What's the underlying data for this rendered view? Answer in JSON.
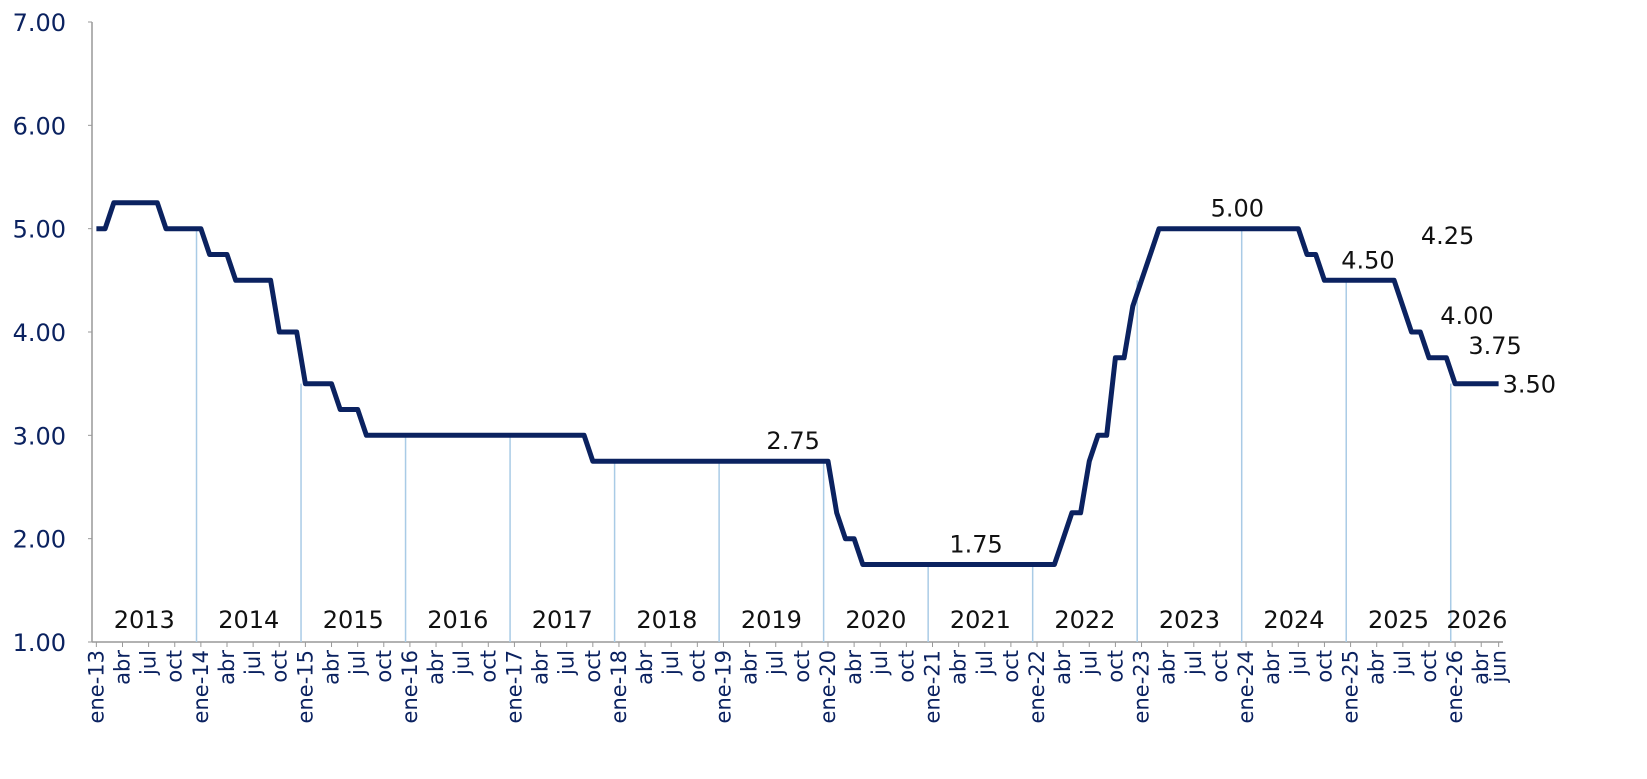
{
  "chart_data": {
    "type": "line",
    "categories": [
      "ene-13",
      null,
      null,
      "abr",
      null,
      null,
      "jul",
      null,
      null,
      "oct",
      null,
      null,
      "ene-14",
      null,
      null,
      "abr",
      null,
      null,
      "jul",
      null,
      null,
      "oct",
      null,
      null,
      "ene-15",
      null,
      null,
      "abr",
      null,
      null,
      "jul",
      null,
      null,
      "oct",
      null,
      null,
      "ene-16",
      null,
      null,
      "abr",
      null,
      null,
      "jul",
      null,
      null,
      "oct",
      null,
      null,
      "ene-17",
      null,
      null,
      "abr",
      null,
      null,
      "jul",
      null,
      null,
      "oct",
      null,
      null,
      "ene-18",
      null,
      null,
      "abr",
      null,
      null,
      "jul",
      null,
      null,
      "oct",
      null,
      null,
      "ene-19",
      null,
      null,
      "abr",
      null,
      null,
      "jul",
      null,
      null,
      "oct",
      null,
      null,
      "ene-20",
      null,
      null,
      "abr",
      null,
      null,
      "jul",
      null,
      null,
      "oct",
      null,
      null,
      "ene-21",
      null,
      null,
      "abr",
      null,
      null,
      "jul",
      null,
      null,
      "oct",
      null,
      null,
      "ene-22",
      null,
      null,
      "abr",
      null,
      null,
      "jul",
      null,
      null,
      "oct",
      null,
      null,
      "ene-23",
      null,
      null,
      "abr",
      null,
      null,
      "jul",
      null,
      null,
      "oct",
      null,
      null,
      "ene-24",
      null,
      null,
      "abr",
      null,
      null,
      "jul",
      null,
      null,
      "oct",
      null,
      null,
      "ene-25",
      null,
      null,
      "abr",
      null,
      null,
      "jul",
      null,
      null,
      "oct",
      null,
      null,
      "ene-26",
      null,
      null,
      "abr",
      null,
      "jun"
    ],
    "year_labels": [
      "2013",
      "2014",
      "2015",
      "2016",
      "2017",
      "2018",
      "2019",
      "2020",
      "2021",
      "2022",
      "2023",
      "2024",
      "2025",
      "2026"
    ],
    "series": [
      {
        "color": "#0b2260",
        "values": [
          5,
          5,
          5.25,
          5.25,
          5.25,
          5.25,
          5.25,
          5.25,
          5,
          5,
          5,
          5,
          5,
          4.75,
          4.75,
          4.75,
          4.5,
          4.5,
          4.5,
          4.5,
          4.5,
          4,
          4,
          4,
          3.5,
          3.5,
          3.5,
          3.5,
          3.25,
          3.25,
          3.25,
          3,
          3,
          3,
          3,
          3,
          3,
          3,
          3,
          3,
          3,
          3,
          3,
          3,
          3,
          3,
          3,
          3,
          3,
          3,
          3,
          3,
          3,
          3,
          3,
          3,
          3,
          2.75,
          2.75,
          2.75,
          2.75,
          2.75,
          2.75,
          2.75,
          2.75,
          2.75,
          2.75,
          2.75,
          2.75,
          2.75,
          2.75,
          2.75,
          2.75,
          2.75,
          2.75,
          2.75,
          2.75,
          2.75,
          2.75,
          2.75,
          2.75,
          2.75,
          2.75,
          2.75,
          2.75,
          2.25,
          2,
          2,
          1.75,
          1.75,
          1.75,
          1.75,
          1.75,
          1.75,
          1.75,
          1.75,
          1.75,
          1.75,
          1.75,
          1.75,
          1.75,
          1.75,
          1.75,
          1.75,
          1.75,
          1.75,
          1.75,
          1.75,
          1.75,
          1.75,
          1.75,
          2,
          2.25,
          2.25,
          2.75,
          3,
          3,
          3.75,
          3.75,
          4.25,
          4.5,
          4.75,
          5,
          5,
          5,
          5,
          5,
          5,
          5,
          5,
          5,
          5,
          5,
          5,
          5,
          5,
          5,
          5,
          5,
          4.75,
          4.75,
          4.5,
          4.5,
          4.5,
          4.5,
          4.5,
          4.5,
          4.5,
          4.5,
          4.5,
          4.25,
          4,
          4,
          3.75,
          3.75,
          3.75,
          3.5,
          3.5,
          3.5,
          3.5,
          3.5,
          3.5
        ],
        "value_labels": [
          null,
          null,
          null,
          null,
          null,
          null,
          null,
          null,
          null,
          null,
          null,
          null,
          null,
          null,
          null,
          null,
          null,
          null,
          null,
          null,
          null,
          null,
          null,
          null,
          null,
          null,
          null,
          null,
          null,
          null,
          null,
          null,
          null,
          null,
          null,
          null,
          null,
          null,
          null,
          null,
          null,
          null,
          null,
          null,
          null,
          null,
          null,
          null,
          null,
          null,
          null,
          null,
          null,
          null,
          null,
          null,
          null,
          null,
          null,
          null,
          null,
          null,
          null,
          null,
          null,
          null,
          null,
          null,
          null,
          null,
          null,
          null,
          null,
          null,
          null,
          null,
          null,
          null,
          null,
          null,
          "2.75",
          null,
          null,
          null,
          null,
          null,
          null,
          null,
          null,
          null,
          null,
          null,
          null,
          null,
          null,
          null,
          null,
          null,
          null,
          null,
          null,
          "1.75",
          null,
          null,
          null,
          null,
          null,
          null,
          null,
          null,
          null,
          null,
          null,
          null,
          null,
          null,
          null,
          null,
          null,
          null,
          null,
          null,
          null,
          null,
          null,
          null,
          null,
          null,
          null,
          null,
          null,
          "5.00",
          null,
          null,
          null,
          null,
          null,
          null,
          null,
          null,
          null,
          null,
          null,
          null,
          null,
          null,
          "4.50",
          null,
          null,
          null,
          "4.25",
          null,
          "4.00",
          null,
          null,
          "3.75",
          null,
          null,
          null,
          null,
          null,
          "3.50"
        ]
      }
    ],
    "ylim": [
      1,
      7
    ],
    "yticks": [
      {
        "value": 1,
        "label": "1.00"
      },
      {
        "value": 2,
        "label": "2.00"
      },
      {
        "value": 3,
        "label": "3.00"
      },
      {
        "value": 4,
        "label": "4.00"
      },
      {
        "value": 5,
        "label": "5.00"
      },
      {
        "value": 6,
        "label": "6.00"
      },
      {
        "value": 7,
        "label": "7.00"
      }
    ]
  }
}
